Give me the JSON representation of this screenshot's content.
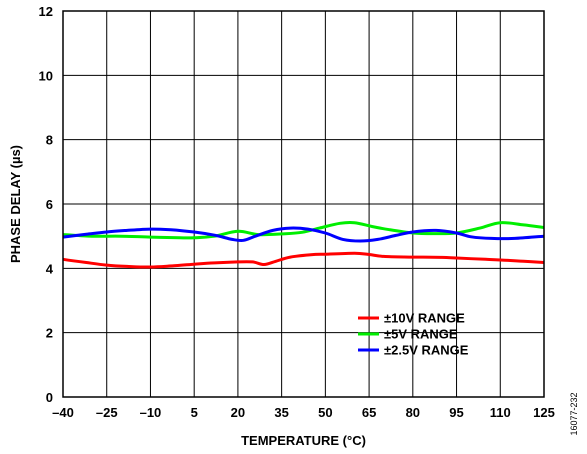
{
  "chart_data": {
    "type": "line",
    "xlabel": "TEMPERATURE (°C)",
    "ylabel": "PHASE DELAY (µs)",
    "xlim": [
      -40,
      125
    ],
    "ylim": [
      0,
      12
    ],
    "x_ticks": [
      -40,
      -25,
      -10,
      5,
      20,
      35,
      50,
      65,
      80,
      95,
      110,
      125
    ],
    "x_tick_labels": [
      "–40",
      "–25",
      "–10",
      "5",
      "20",
      "35",
      "50",
      "65",
      "80",
      "95",
      "110",
      "125"
    ],
    "y_ticks": [
      0,
      2,
      4,
      6,
      8,
      10,
      12
    ],
    "y_tick_labels": [
      "0",
      "2",
      "4",
      "6",
      "8",
      "10",
      "12"
    ],
    "grid": true,
    "legend_position": "lower-right",
    "series": [
      {
        "name": "±10V RANGE",
        "color": "#ff0000",
        "x": [
          -40,
          -32,
          -25,
          -18,
          -10,
          -2,
          5,
          12,
          20,
          25,
          29,
          33,
          38,
          45,
          50,
          60,
          65,
          70,
          80,
          90,
          95,
          105,
          110,
          118,
          125
        ],
        "y": [
          4.28,
          4.18,
          4.1,
          4.06,
          4.04,
          4.08,
          4.13,
          4.17,
          4.2,
          4.2,
          4.12,
          4.22,
          4.35,
          4.42,
          4.44,
          4.47,
          4.43,
          4.37,
          4.35,
          4.34,
          4.32,
          4.28,
          4.26,
          4.22,
          4.18
        ]
      },
      {
        "name": "±5V RANGE",
        "color": "#00ee00",
        "x": [
          -40,
          -30,
          -20,
          -10,
          0,
          5,
          12,
          20,
          27,
          35,
          42,
          48,
          55,
          60,
          66,
          72,
          80,
          87,
          95,
          103,
          110,
          118,
          125
        ],
        "y": [
          5.05,
          5.0,
          5.0,
          4.97,
          4.95,
          4.95,
          5.0,
          5.15,
          5.05,
          5.07,
          5.12,
          5.25,
          5.4,
          5.42,
          5.3,
          5.2,
          5.1,
          5.08,
          5.1,
          5.25,
          5.42,
          5.35,
          5.27
        ]
      },
      {
        "name": "±2.5V RANGE",
        "color": "#0000ff",
        "x": [
          -40,
          -32,
          -25,
          -18,
          -10,
          -3,
          5,
          12,
          18,
          22,
          26,
          32,
          38,
          44,
          50,
          56,
          62,
          68,
          74,
          80,
          88,
          95,
          100,
          107,
          115,
          125
        ],
        "y": [
          4.97,
          5.06,
          5.13,
          5.18,
          5.22,
          5.2,
          5.13,
          5.03,
          4.9,
          4.87,
          5.0,
          5.18,
          5.25,
          5.22,
          5.1,
          4.9,
          4.85,
          4.9,
          5.02,
          5.13,
          5.18,
          5.1,
          4.98,
          4.93,
          4.93,
          5.0
        ]
      }
    ],
    "annotation": "16077-232"
  }
}
